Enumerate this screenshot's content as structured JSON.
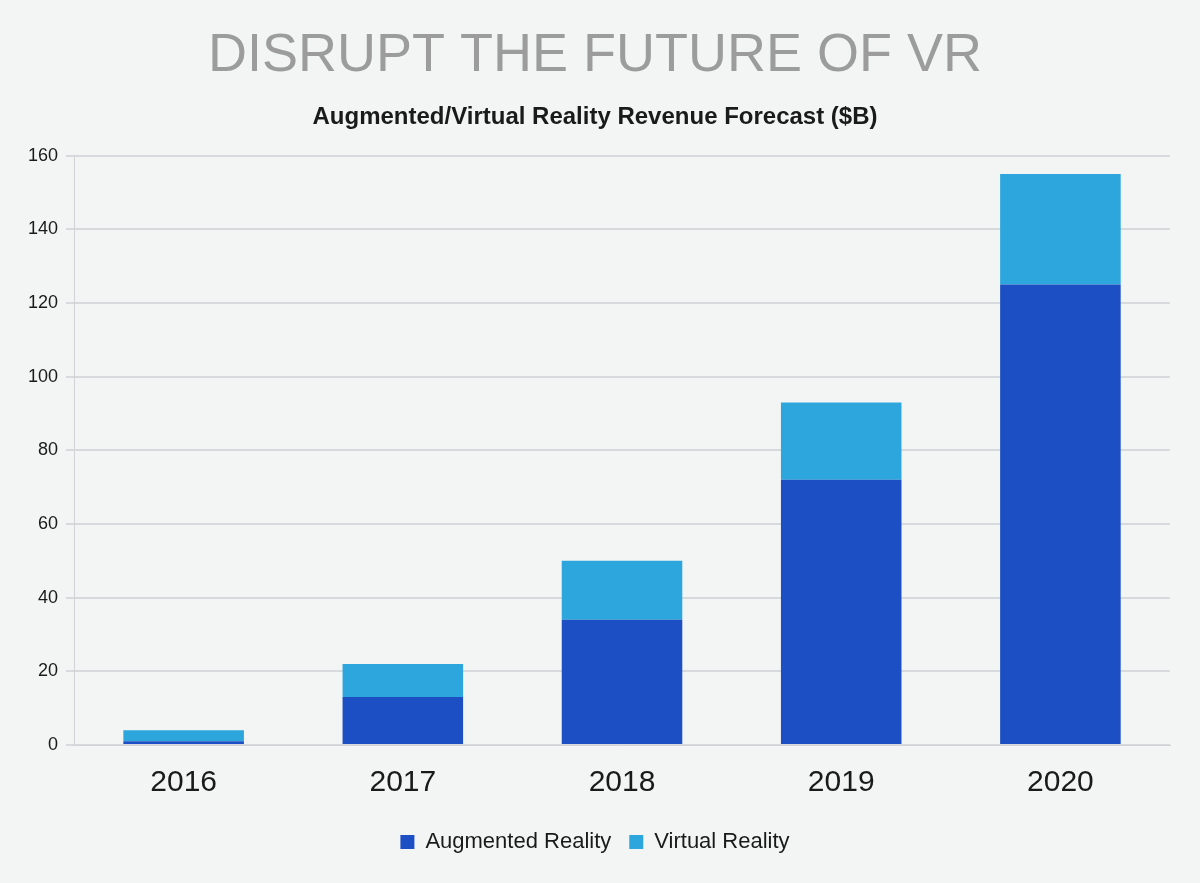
{
  "chart_data": {
    "type": "bar",
    "title": "DISRUPT THE FUTURE OF VR",
    "subtitle": "Augmented/Virtual Reality Revenue Forecast ($B)",
    "categories": [
      "2016",
      "2017",
      "2018",
      "2019",
      "2020"
    ],
    "series": [
      {
        "name": "Augmented Reality",
        "color": "#1d4fc4",
        "values": [
          1,
          13,
          34,
          72,
          125
        ]
      },
      {
        "name": "Virtual Reality",
        "color": "#2ca6dc",
        "values": [
          3,
          9,
          16,
          21,
          30
        ]
      }
    ],
    "ylim": [
      0,
      160
    ],
    "yticks": [
      0,
      20,
      40,
      60,
      80,
      100,
      120,
      140,
      160
    ],
    "grid": true,
    "stacked": true,
    "legend": "bottom"
  }
}
